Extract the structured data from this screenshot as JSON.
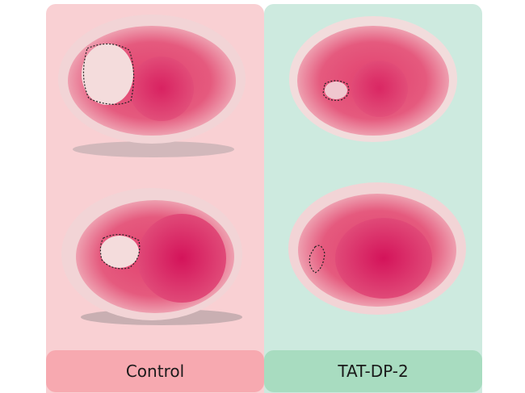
{
  "groups": [
    {
      "label": "Control",
      "panel_color": "#f9d0d3",
      "label_color": "#f7a9b0"
    },
    {
      "label": "TAT-DP-2",
      "panel_color": "#cdeadf",
      "label_color": "#a8dcc0"
    }
  ],
  "colors": {
    "tissue_outer": "#f0b8be",
    "tissue_core": "#e0476f",
    "tissue_deep": "#d81e5b",
    "infarct": "#f5dede"
  }
}
